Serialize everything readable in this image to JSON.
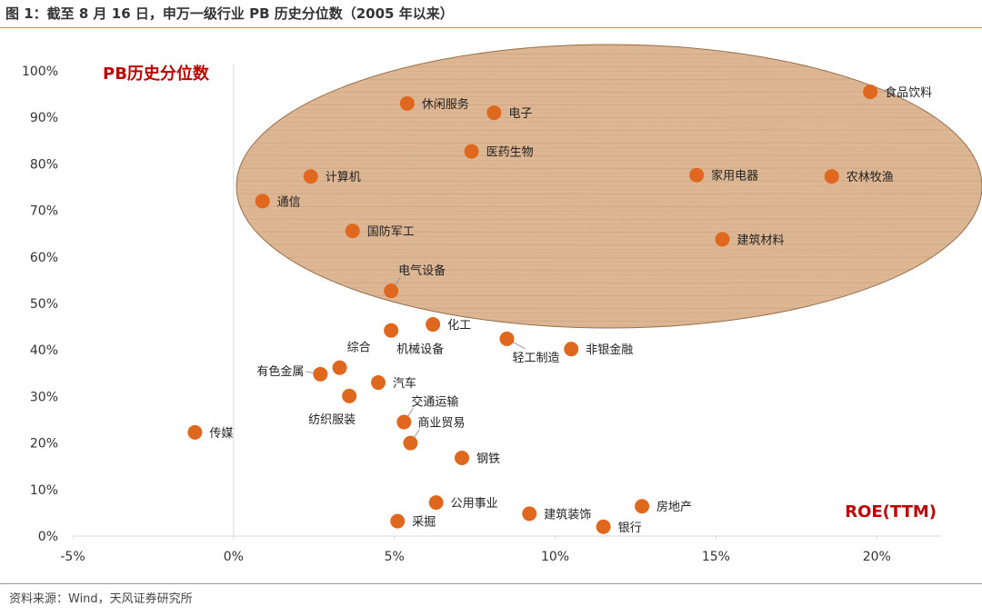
{
  "header": {
    "figure_title": "图 1：截至 8 月 16 日，申万一级行业 PB 历史分位数（2005 年以来）",
    "source": "资料来源：Wind，天风证券研究所"
  },
  "colors": {
    "point": "#e0681e",
    "axis_title": "#c00000",
    "ellipse_fill": "#d9ad85",
    "ellipse_grain": "#c2936a",
    "ellipse_stroke": "#8a5c34",
    "rule": "#f08a3a"
  },
  "chart_data": {
    "type": "scatter",
    "title": "图 1：截至 8 月 16 日，申万一级行业 PB 历史分位数（2005 年以来）",
    "xlabel": "ROE(TTM)",
    "ylabel": "PB历史分位数",
    "xlim": [
      -0.05,
      0.22
    ],
    "ylim": [
      0,
      1.0
    ],
    "x_ticks": [
      -0.05,
      0,
      0.05,
      0.1,
      0.15,
      0.2
    ],
    "x_tick_labels": [
      "-5%",
      "0%",
      "5%",
      "10%",
      "15%",
      "20%"
    ],
    "y_ticks": [
      0,
      0.1,
      0.2,
      0.3,
      0.4,
      0.5,
      0.6,
      0.7,
      0.8,
      0.9,
      1.0
    ],
    "y_tick_labels": [
      "0%",
      "10%",
      "20%",
      "30%",
      "40%",
      "50%",
      "60%",
      "70%",
      "80%",
      "90%",
      "100%"
    ],
    "grid": false,
    "highlight": "wood-textured ellipse around high-percentile industries",
    "points": [
      {
        "name": "食品饮料",
        "x": 0.198,
        "y": 0.955,
        "label_pos": "right",
        "leader": false
      },
      {
        "name": "休闲服务",
        "x": 0.054,
        "y": 0.93,
        "label_pos": "right",
        "leader": false
      },
      {
        "name": "电子",
        "x": 0.081,
        "y": 0.91,
        "label_pos": "right",
        "leader": false
      },
      {
        "name": "医药生物",
        "x": 0.074,
        "y": 0.827,
        "label_pos": "right",
        "leader": false
      },
      {
        "name": "计算机",
        "x": 0.024,
        "y": 0.773,
        "label_pos": "right",
        "leader": false
      },
      {
        "name": "家用电器",
        "x": 0.144,
        "y": 0.776,
        "label_pos": "right",
        "leader": false
      },
      {
        "name": "农林牧渔",
        "x": 0.186,
        "y": 0.773,
        "label_pos": "right",
        "leader": false
      },
      {
        "name": "通信",
        "x": 0.009,
        "y": 0.72,
        "label_pos": "right",
        "leader": false
      },
      {
        "name": "国防军工",
        "x": 0.037,
        "y": 0.656,
        "label_pos": "right",
        "leader": false
      },
      {
        "name": "建筑材料",
        "x": 0.152,
        "y": 0.638,
        "label_pos": "right",
        "leader": false
      },
      {
        "name": "电气设备",
        "x": 0.049,
        "y": 0.527,
        "label_pos": "upper-right",
        "leader": true
      },
      {
        "name": "化工",
        "x": 0.062,
        "y": 0.455,
        "label_pos": "right",
        "leader": false
      },
      {
        "name": "机械设备",
        "x": 0.049,
        "y": 0.442,
        "label_pos": "below-right",
        "leader": false
      },
      {
        "name": "轻工制造",
        "x": 0.085,
        "y": 0.424,
        "label_pos": "below-right",
        "leader": true
      },
      {
        "name": "非银金融",
        "x": 0.105,
        "y": 0.402,
        "label_pos": "right",
        "leader": false
      },
      {
        "name": "综合",
        "x": 0.033,
        "y": 0.362,
        "label_pos": "upper-right",
        "leader": false
      },
      {
        "name": "有色金属",
        "x": 0.027,
        "y": 0.348,
        "label_pos": "left",
        "leader": true
      },
      {
        "name": "汽车",
        "x": 0.045,
        "y": 0.33,
        "label_pos": "right",
        "leader": false
      },
      {
        "name": "纺织服装",
        "x": 0.036,
        "y": 0.301,
        "label_pos": "below",
        "leader": false
      },
      {
        "name": "交通运输",
        "x": 0.053,
        "y": 0.245,
        "label_pos": "upper-right",
        "leader": true
      },
      {
        "name": "传媒",
        "x": -0.012,
        "y": 0.223,
        "label_pos": "right",
        "leader": false
      },
      {
        "name": "商业贸易",
        "x": 0.055,
        "y": 0.2,
        "label_pos": "upper-right",
        "leader": true
      },
      {
        "name": "钢铁",
        "x": 0.071,
        "y": 0.168,
        "label_pos": "right",
        "leader": false
      },
      {
        "name": "公用事业",
        "x": 0.063,
        "y": 0.072,
        "label_pos": "right",
        "leader": false
      },
      {
        "name": "房地产",
        "x": 0.127,
        "y": 0.064,
        "label_pos": "right",
        "leader": false
      },
      {
        "name": "建筑装饰",
        "x": 0.092,
        "y": 0.048,
        "label_pos": "right",
        "leader": false
      },
      {
        "name": "采掘",
        "x": 0.051,
        "y": 0.032,
        "label_pos": "right",
        "leader": false
      },
      {
        "name": "银行",
        "x": 0.115,
        "y": 0.02,
        "label_pos": "right",
        "leader": false
      }
    ]
  }
}
